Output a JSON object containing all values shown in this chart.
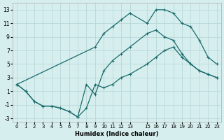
{
  "xlabel": "Humidex (Indice chaleur)",
  "bg_color": "#d7eeee",
  "grid_color": "#b8d8d8",
  "line_color": "#1a6b6b",
  "xlim": [
    -0.5,
    23.5
  ],
  "ylim": [
    -3.5,
    14.0
  ],
  "xticks": [
    0,
    1,
    2,
    3,
    4,
    5,
    6,
    7,
    8,
    9,
    10,
    11,
    12,
    13,
    15,
    16,
    17,
    18,
    19,
    20,
    21,
    22,
    23
  ],
  "yticks": [
    -3,
    -1,
    1,
    3,
    5,
    7,
    9,
    11,
    13
  ],
  "curve_upper_x": [
    0,
    9,
    10,
    11,
    12,
    13,
    15,
    16,
    17,
    18,
    19,
    20,
    21,
    22,
    23
  ],
  "curve_upper_y": [
    2,
    7.5,
    9.5,
    10.5,
    11.5,
    12.5,
    11.0,
    13.0,
    13.0,
    12.5,
    11.0,
    10.5,
    8.5,
    6.0,
    5.0
  ],
  "curve_mid_x": [
    0,
    1,
    2,
    3,
    4,
    5,
    6,
    7,
    8,
    9,
    10,
    11,
    12,
    13,
    15,
    16,
    17,
    18,
    19,
    20,
    21,
    22,
    23
  ],
  "curve_mid_y": [
    2,
    1.0,
    -0.5,
    -1.2,
    -1.2,
    -1.5,
    -2.0,
    -2.8,
    2.0,
    0.5,
    4.0,
    5.5,
    6.5,
    7.5,
    9.5,
    10.0,
    9.0,
    8.5,
    6.5,
    5.0,
    4.0,
    3.5,
    3.0
  ],
  "curve_low_x": [
    0,
    1,
    2,
    3,
    4,
    5,
    6,
    7,
    8,
    9,
    10,
    11,
    12,
    13,
    15,
    16,
    17,
    18,
    19,
    20,
    21,
    22,
    23
  ],
  "curve_low_y": [
    2,
    1.0,
    -0.5,
    -1.2,
    -1.2,
    -1.5,
    -2.0,
    -2.8,
    -1.5,
    2.0,
    1.5,
    2.0,
    3.0,
    3.5,
    5.0,
    6.0,
    7.0,
    7.5,
    6.0,
    5.0,
    4.0,
    3.5,
    3.0
  ]
}
